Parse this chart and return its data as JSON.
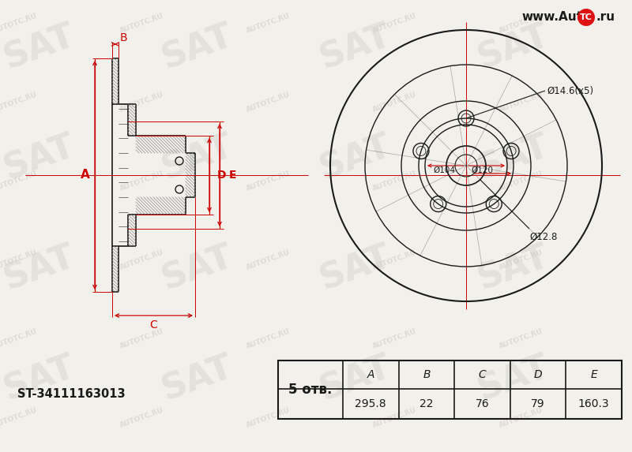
{
  "bg_color": "#f2f0eb",
  "line_color": "#1a1a1a",
  "red_color": "#cc0000",
  "part_number": "ST-34111163013",
  "holes_text": "5 отв.",
  "holes_text_num": "5",
  "holes_text_unit": "отв.",
  "dim_A": "295.8",
  "dim_B": "22",
  "dim_C": "76",
  "dim_D": "79",
  "dim_E": "160.3",
  "label_A": "A",
  "label_B": "B",
  "label_C": "C",
  "label_D": "D",
  "label_E": "E",
  "d_bolt_label": "Ø14.6(x5)",
  "d_104_label": "Ø104",
  "d_120_label": "Ø120",
  "d_bore_label": "Ø12.8",
  "logo_text_left": "www.Auto",
  "logo_text_tc": "TC",
  "logo_text_right": ".ru",
  "wm_sat": "SAT",
  "wm_autotc": "AUTOTC.RU"
}
